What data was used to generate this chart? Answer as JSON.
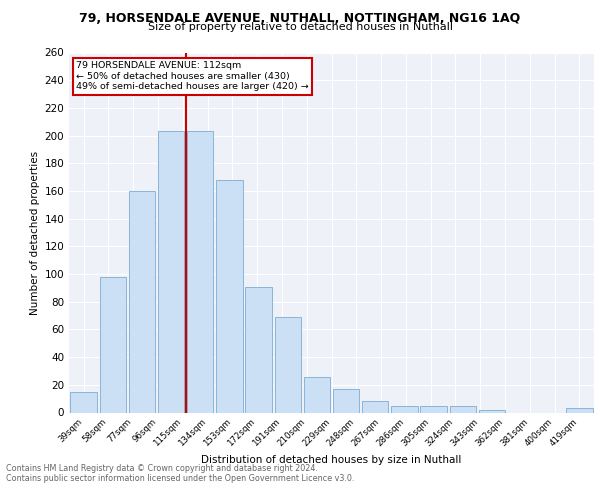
{
  "title": "79, HORSENDALE AVENUE, NUTHALL, NOTTINGHAM, NG16 1AQ",
  "subtitle": "Size of property relative to detached houses in Nuthall",
  "xlabel": "Distribution of detached houses by size in Nuthall",
  "ylabel": "Number of detached properties",
  "bar_values": [
    15,
    98,
    160,
    203,
    203,
    168,
    91,
    69,
    26,
    17,
    8,
    5,
    5,
    5,
    2,
    0,
    0,
    3
  ],
  "bar_categories": [
    "39sqm",
    "58sqm",
    "77sqm",
    "96sqm",
    "115sqm",
    "134sqm",
    "153sqm",
    "172sqm",
    "191sqm",
    "210sqm",
    "229sqm",
    "248sqm",
    "267sqm",
    "286sqm",
    "305sqm",
    "324sqm",
    "343sqm",
    "419sqm"
  ],
  "xtick_labels": [
    "39sqm",
    "58sqm",
    "77sqm",
    "96sqm",
    "115sqm",
    "134sqm",
    "153sqm",
    "172sqm",
    "191sqm",
    "210sqm",
    "229sqm",
    "248sqm",
    "267sqm",
    "286sqm",
    "305sqm",
    "324sqm",
    "343sqm",
    "362sqm",
    "381sqm",
    "400sqm",
    "419sqm"
  ],
  "bar_fill": "#cce0f5",
  "bar_edge": "#7aadd4",
  "vline_x": 3.5,
  "vline_color": "#cc0000",
  "annotation_title": "79 HORSENDALE AVENUE: 112sqm",
  "annotation_line1": "← 50% of detached houses are smaller (430)",
  "annotation_line2": "49% of semi-detached houses are larger (420) →",
  "annotation_box_color": "#cc0000",
  "ylim": [
    0,
    260
  ],
  "yticks": [
    0,
    20,
    40,
    60,
    80,
    100,
    120,
    140,
    160,
    180,
    200,
    220,
    240,
    260
  ],
  "footer1": "Contains HM Land Registry data © Crown copyright and database right 2024.",
  "footer2": "Contains public sector information licensed under the Open Government Licence v3.0.",
  "bg_color": "#eef2f8",
  "grid_color": "#ffffff"
}
